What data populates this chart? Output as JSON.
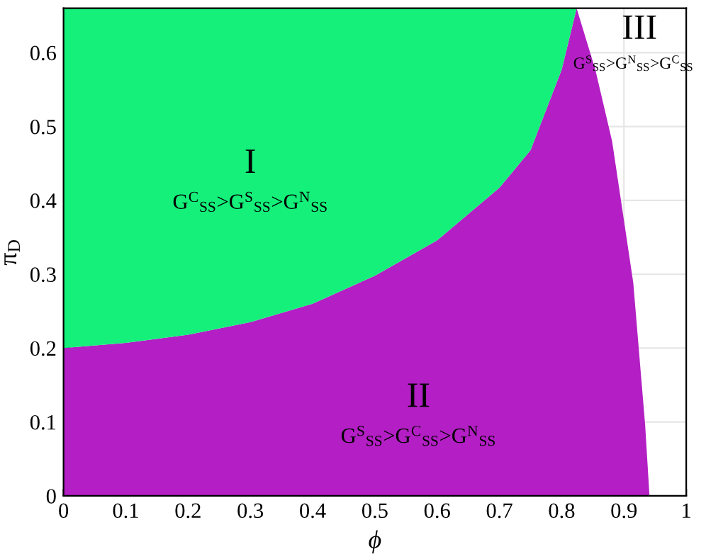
{
  "chart_data": {
    "type": "area",
    "stacked": true,
    "xlabel": "ϕ",
    "ylabel": "π$_{D}$",
    "x": [
      0,
      0.1,
      0.2,
      0.3,
      0.4,
      0.5,
      0.6,
      0.7,
      0.75,
      0.8,
      0.824,
      0.854,
      0.881,
      0.915,
      0.934,
      0.941
    ],
    "series": [
      {
        "color": "#b31fc4",
        "values": [
          0.2,
          0.207,
          0.218,
          0.235,
          0.26,
          0.298,
          0.346,
          0.417,
          0.468,
          0.577,
          0.66,
          0.577,
          0.48,
          0.288,
          0.096,
          0
        ]
      },
      {
        "color": "#14f07a",
        "x": [
          0,
          0.1,
          0.2,
          0.3,
          0.4,
          0.5,
          0.6,
          0.7,
          0.75,
          0.8,
          0.824
        ],
        "values": [
          0.46,
          0.453,
          0.442,
          0.425,
          0.4,
          0.362,
          0.314,
          0.243,
          0.192,
          0.083,
          0
        ]
      }
    ],
    "annotations": [
      "I",
      "G$^{C}$$_{SS}$>G$^{S}$$_{SS}$>G$^{N}$$_{SS}$",
      "II",
      "G$^{S}$$_{SS}$>G$^{C}$$_{SS}$>G$^{N}$$_{SS}$",
      "III",
      "G$^{S}$$_{SS}$>G$^{N}$$_{SS}$>G$^{C}$$_{SS}$"
    ],
    "xlim": [
      0,
      1
    ],
    "ylim": [
      0,
      0.66
    ],
    "xticks": [
      0,
      0.1,
      0.2,
      0.3,
      0.4,
      0.5,
      0.6,
      0.7,
      0.8,
      0.9,
      1
    ],
    "yticks": [
      0,
      0.1,
      0.2,
      0.3,
      0.4,
      0.5,
      0.6
    ],
    "grid": true
  }
}
